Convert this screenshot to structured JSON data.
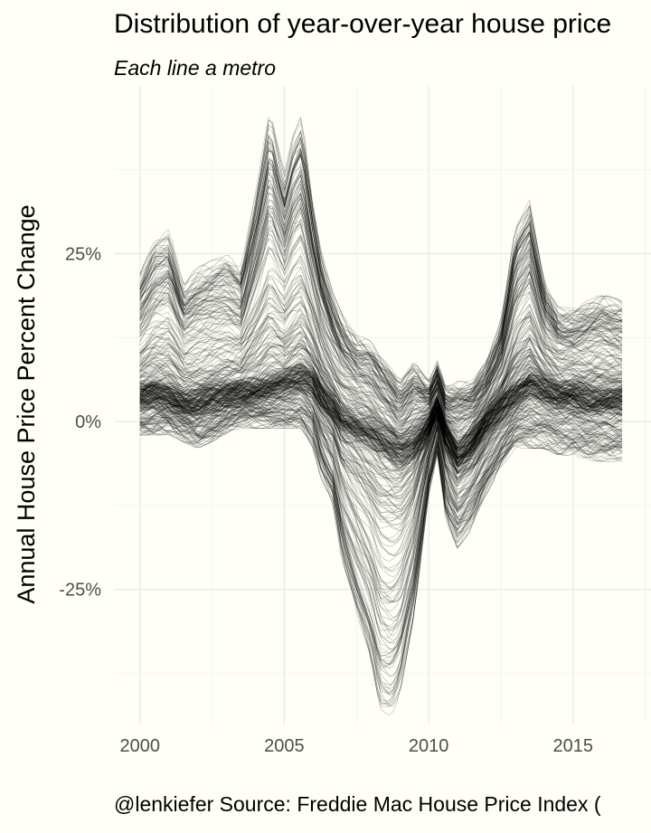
{
  "chart_data": {
    "type": "line",
    "title": "Distribution of year-over-year house price",
    "subtitle": "Each line a metro",
    "ylabel": "Annual House Price Percent Change",
    "xlabel": "",
    "caption": "@lenkiefer Source: Freddie Mac House Price Index (",
    "xlim": [
      1999.1,
      2017.7
    ],
    "ylim": [
      -45,
      50
    ],
    "x_ticks": [
      2000,
      2005,
      2010,
      2015
    ],
    "x_tick_labels": [
      "2000",
      "2005",
      "2010",
      "2015"
    ],
    "y_ticks": [
      -25,
      0,
      25
    ],
    "y_tick_labels": [
      "-25%",
      "0%",
      "25%"
    ],
    "x_range": [
      2000,
      2016.7
    ],
    "line_color": "#000000",
    "line_count": 380,
    "grid": true,
    "legend": "none",
    "envelope": {
      "x": [
        2000,
        2000.5,
        2001,
        2001.5,
        2002,
        2002.5,
        2003,
        2003.5,
        2004,
        2004.5,
        2005,
        2005.3,
        2005.6,
        2006,
        2006.3,
        2006.7,
        2007,
        2007.5,
        2008,
        2008.3,
        2008.7,
        2009,
        2009.5,
        2010,
        2010.3,
        2010.6,
        2011,
        2011.5,
        2012,
        2012.5,
        2013,
        2013.5,
        2014,
        2014.5,
        2015,
        2015.5,
        2016,
        2016.7
      ],
      "median": [
        4,
        4.5,
        4,
        3,
        3,
        3.5,
        4,
        4.5,
        5,
        5.5,
        6,
        6.5,
        7,
        6,
        4,
        2,
        0,
        -1,
        -2,
        -3,
        -4,
        -5,
        -4,
        -1,
        2,
        -2,
        -5,
        -3,
        0,
        2,
        4,
        6,
        5,
        4,
        4,
        3.5,
        3.5,
        3.5
      ],
      "max": [
        21,
        26,
        28,
        20,
        22,
        23,
        24,
        22,
        33,
        46,
        36,
        42,
        45,
        32,
        24,
        18,
        15,
        12,
        11,
        9,
        7,
        5,
        8,
        5,
        8,
        4,
        5,
        5,
        8,
        14,
        28,
        32,
        20,
        16,
        16,
        17,
        18,
        17
      ],
      "min": [
        -1,
        -1,
        -1,
        -2,
        -3,
        -2,
        -1,
        0,
        0,
        0,
        0,
        0,
        0,
        -3,
        -8,
        -12,
        -20,
        -28,
        -35,
        -42,
        -43,
        -40,
        -28,
        -10,
        -4,
        -14,
        -18,
        -15,
        -10,
        -6,
        -3,
        -3,
        -3,
        -4,
        -4,
        -5,
        -5,
        -5
      ]
    }
  }
}
